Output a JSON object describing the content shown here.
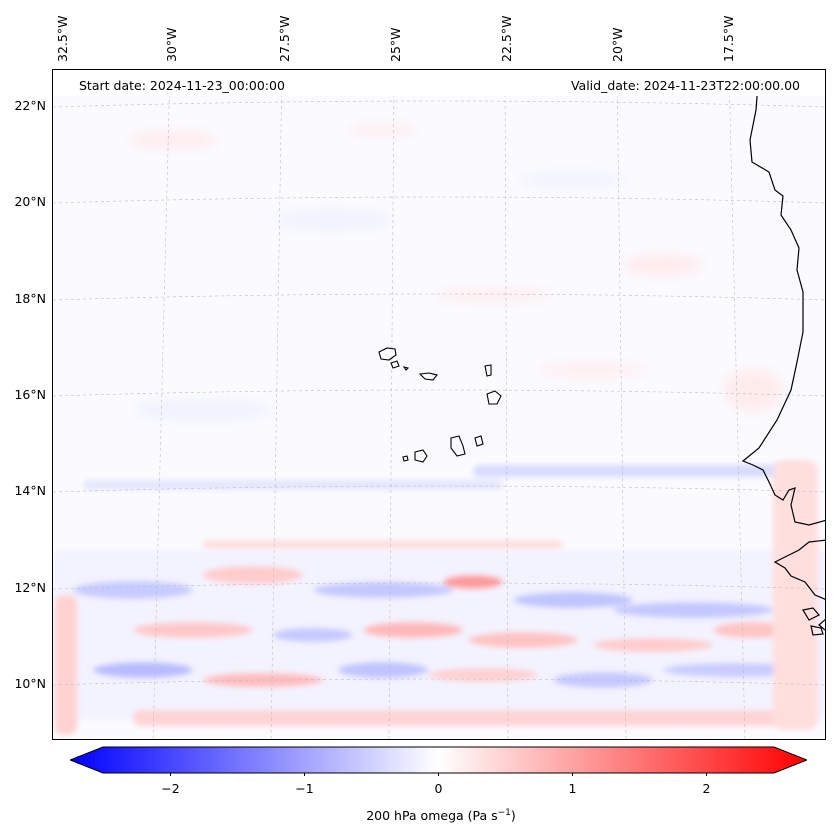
{
  "map": {
    "start_date": "Start date: 2024-11-23_00:00:00",
    "valid_date": "Valid_date: 2024-11-23T22:00:00.00",
    "longitude_labels": [
      "32.5°W",
      "30°W",
      "27.5°W",
      "25°W",
      "22.5°W",
      "20°W",
      "17.5°W"
    ],
    "latitude_labels": [
      "22°N",
      "20°N",
      "18°N",
      "16°N",
      "14°N",
      "12°N",
      "10°N"
    ],
    "features": [
      "Cape Verde Islands",
      "West African coastline"
    ],
    "field": "200 hPa omega"
  },
  "colorbar": {
    "tick_labels": [
      "−2",
      "−1",
      "0",
      "1",
      "2"
    ],
    "label_text": "200 hPa omega (Pa s",
    "label_exponent": "−1",
    "label_close": ")",
    "min_value": -2.75,
    "max_value": 2.75,
    "tick_values": [
      -2,
      -1,
      0,
      1,
      2
    ],
    "negative_color": "#0000ff",
    "zero_color": "#ffffff",
    "positive_color": "#ff0000"
  }
}
